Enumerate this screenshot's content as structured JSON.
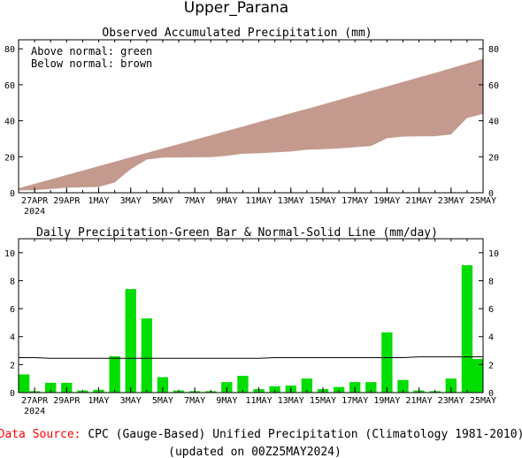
{
  "page_title": "Upper_Parana",
  "footer": {
    "source_label": "Data Source:",
    "source_text": "CPC (Gauge-Based) Unified Precipitation (Climatology 1981-2010)",
    "updated_text": "(updated on 00Z25MAY2024)",
    "source_color": "#ff0000"
  },
  "x_ticks": [
    "27APR",
    "29APR",
    "1MAY",
    "3MAY",
    "5MAY",
    "7MAY",
    "9MAY",
    "11MAY",
    "13MAY",
    "15MAY",
    "17MAY",
    "19MAY",
    "21MAY",
    "23MAY",
    "25MAY"
  ],
  "year_label": "2024",
  "chart_data": [
    {
      "type": "area",
      "title": "Observed Accumulated Precipitation (mm)",
      "legend": [
        "Above normal: green",
        "Below normal: brown"
      ],
      "legend_position": "top-left",
      "below_color": "#c49a8e",
      "above_color": "#00dd00",
      "ylim": [
        0,
        85
      ],
      "yticks": [
        0,
        20,
        40,
        60,
        80
      ],
      "days": [
        "26APR",
        "27APR",
        "28APR",
        "29APR",
        "30APR",
        "1MAY",
        "2MAY",
        "3MAY",
        "4MAY",
        "5MAY",
        "6MAY",
        "7MAY",
        "8MAY",
        "9MAY",
        "10MAY",
        "11MAY",
        "12MAY",
        "13MAY",
        "14MAY",
        "15MAY",
        "16MAY",
        "17MAY",
        "18MAY",
        "19MAY",
        "20MAY",
        "21MAY",
        "22MAY",
        "23MAY",
        "24MAY",
        "25MAY"
      ],
      "series": [
        {
          "name": "Observed",
          "values": [
            1.3,
            1.4,
            2.1,
            2.8,
            3.0,
            3.2,
            5.7,
            13.1,
            18.4,
            19.5,
            19.6,
            19.7,
            19.8,
            20.5,
            21.7,
            21.9,
            22.4,
            22.9,
            23.9,
            24.2,
            24.6,
            25.3,
            26.0,
            30.3,
            31.2,
            31.3,
            31.4,
            32.4,
            41.5,
            43.8
          ]
        },
        {
          "name": "Normal",
          "values": [
            2.5,
            5.0,
            7.4,
            9.9,
            12.3,
            14.8,
            17.2,
            19.7,
            22.1,
            24.6,
            27.0,
            29.5,
            31.9,
            34.4,
            36.8,
            39.3,
            41.7,
            44.2,
            46.6,
            49.1,
            51.6,
            54.1,
            56.6,
            59.1,
            61.6,
            64.1,
            66.6,
            69.2,
            71.8,
            74.4
          ]
        }
      ]
    },
    {
      "type": "bar",
      "title": "Daily Precipitation-Green Bar & Normal-Solid Line (mm/day)",
      "bar_color": "#00dd00",
      "ylim": [
        0,
        11
      ],
      "yticks": [
        0,
        2,
        4,
        6,
        8,
        10
      ],
      "days": [
        "26APR",
        "27APR",
        "28APR",
        "29APR",
        "30APR",
        "1MAY",
        "2MAY",
        "3MAY",
        "4MAY",
        "5MAY",
        "6MAY",
        "7MAY",
        "8MAY",
        "9MAY",
        "10MAY",
        "11MAY",
        "12MAY",
        "13MAY",
        "14MAY",
        "15MAY",
        "16MAY",
        "17MAY",
        "18MAY",
        "19MAY",
        "20MAY",
        "21MAY",
        "22MAY",
        "23MAY",
        "24MAY",
        "25MAY"
      ],
      "series": [
        {
          "name": "Daily",
          "values": [
            1.3,
            0.1,
            0.7,
            0.7,
            0.15,
            0.2,
            2.6,
            7.4,
            5.3,
            1.1,
            0.15,
            0.1,
            0.1,
            0.75,
            1.2,
            0.25,
            0.45,
            0.5,
            1.0,
            0.25,
            0.4,
            0.75,
            0.75,
            4.3,
            0.9,
            0.15,
            0.1,
            1.0,
            9.1,
            2.4
          ]
        },
        {
          "name": "Normal",
          "values": [
            2.5,
            2.5,
            2.45,
            2.45,
            2.45,
            2.45,
            2.45,
            2.45,
            2.45,
            2.45,
            2.45,
            2.45,
            2.45,
            2.45,
            2.45,
            2.45,
            2.5,
            2.5,
            2.5,
            2.5,
            2.5,
            2.5,
            2.5,
            2.5,
            2.5,
            2.55,
            2.55,
            2.55,
            2.55,
            2.55
          ]
        }
      ]
    }
  ]
}
